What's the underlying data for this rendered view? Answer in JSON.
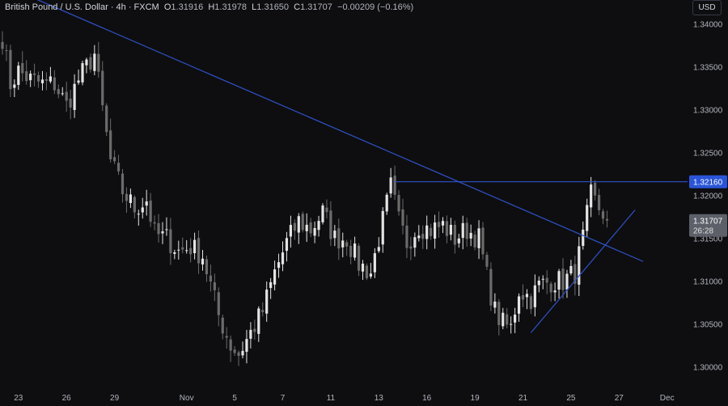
{
  "header": {
    "symbol": "British Pound / U.S. Dollar · 4h · FXCM",
    "o_label": "O",
    "o_value": "1.31916",
    "h_label": "H",
    "h_value": "1.31978",
    "l_label": "L",
    "l_value": "1.31650",
    "c_label": "C",
    "c_value": "1.31707",
    "change": "−0.00209 (−0.16%)"
  },
  "currency": "USD",
  "colors": {
    "background": "#0e0e10",
    "candle_up": "#e4e4e4",
    "candle_down": "#6b6b6b",
    "trendline": "#2f52c9",
    "price_tag": "#2a55d8",
    "current_tag": "#5d6069",
    "axis_text": "#b2b5be"
  },
  "chart_data": {
    "type": "candlestick",
    "instrument": "GBP/USD",
    "timeframe": "4h",
    "y_range": [
      1.2977,
      1.3428
    ],
    "y_ticks": [
      "1.34000",
      "1.33500",
      "1.33000",
      "1.32500",
      "1.32000",
      "1.31500",
      "1.31000",
      "1.30500",
      "1.30000"
    ],
    "x_labels": [
      "23",
      "26",
      "29",
      "Nov",
      "5",
      "7",
      "11",
      "13",
      "16",
      "19",
      "21",
      "25",
      "27",
      "Dec"
    ],
    "x_label_index": [
      4,
      16,
      28,
      46,
      58,
      70,
      82,
      94,
      106,
      118,
      130,
      142,
      154,
      166
    ],
    "horizontal_level": {
      "price": 1.3216,
      "label": "1.32160",
      "start_index": 98
    },
    "current_price": {
      "price": 1.31707,
      "label": "1.31707",
      "countdown": "26:28"
    },
    "trendlines": [
      {
        "name": "descending",
        "from": {
          "i": 0,
          "p": 1.3446
        },
        "to": {
          "i": 160,
          "p": 1.3123
        }
      },
      {
        "name": "ascending",
        "from": {
          "i": 132,
          "p": 1.304
        },
        "to": {
          "i": 158,
          "p": 1.3183
        }
      }
    ],
    "anchors": [
      [
        0,
        1.3385
      ],
      [
        2,
        1.333
      ],
      [
        4,
        1.3345
      ],
      [
        7,
        1.3335
      ],
      [
        10,
        1.333
      ],
      [
        13,
        1.333
      ],
      [
        16,
        1.3305
      ],
      [
        19,
        1.3335
      ],
      [
        23,
        1.3365
      ],
      [
        25,
        1.33
      ],
      [
        27,
        1.324
      ],
      [
        30,
        1.3205
      ],
      [
        33,
        1.3185
      ],
      [
        36,
        1.3195
      ],
      [
        38,
        1.3155
      ],
      [
        41,
        1.315
      ],
      [
        44,
        1.3135
      ],
      [
        47,
        1.314
      ],
      [
        50,
        1.313
      ],
      [
        54,
        1.306
      ],
      [
        57,
        1.3025
      ],
      [
        59,
        1.3015
      ],
      [
        62,
        1.304
      ],
      [
        65,
        1.3065
      ],
      [
        68,
        1.311
      ],
      [
        71,
        1.3145
      ],
      [
        74,
        1.317
      ],
      [
        77,
        1.316
      ],
      [
        80,
        1.318
      ],
      [
        83,
        1.315
      ],
      [
        86,
        1.315
      ],
      [
        89,
        1.312
      ],
      [
        92,
        1.311
      ],
      [
        95,
        1.317
      ],
      [
        97,
        1.321
      ],
      [
        99,
        1.317
      ],
      [
        101,
        1.3145
      ],
      [
        104,
        1.3165
      ],
      [
        107,
        1.316
      ],
      [
        110,
        1.3165
      ],
      [
        113,
        1.315
      ],
      [
        116,
        1.316
      ],
      [
        119,
        1.315
      ],
      [
        121,
        1.3105
      ],
      [
        123,
        1.3065
      ],
      [
        125,
        1.305
      ],
      [
        127,
        1.3045
      ],
      [
        129,
        1.309
      ],
      [
        132,
        1.308
      ],
      [
        134,
        1.3095
      ],
      [
        137,
        1.31
      ],
      [
        140,
        1.31
      ],
      [
        143,
        1.311
      ],
      [
        145,
        1.315
      ],
      [
        147,
        1.32
      ],
      [
        149,
        1.3185
      ],
      [
        151,
        1.3175
      ]
    ]
  }
}
